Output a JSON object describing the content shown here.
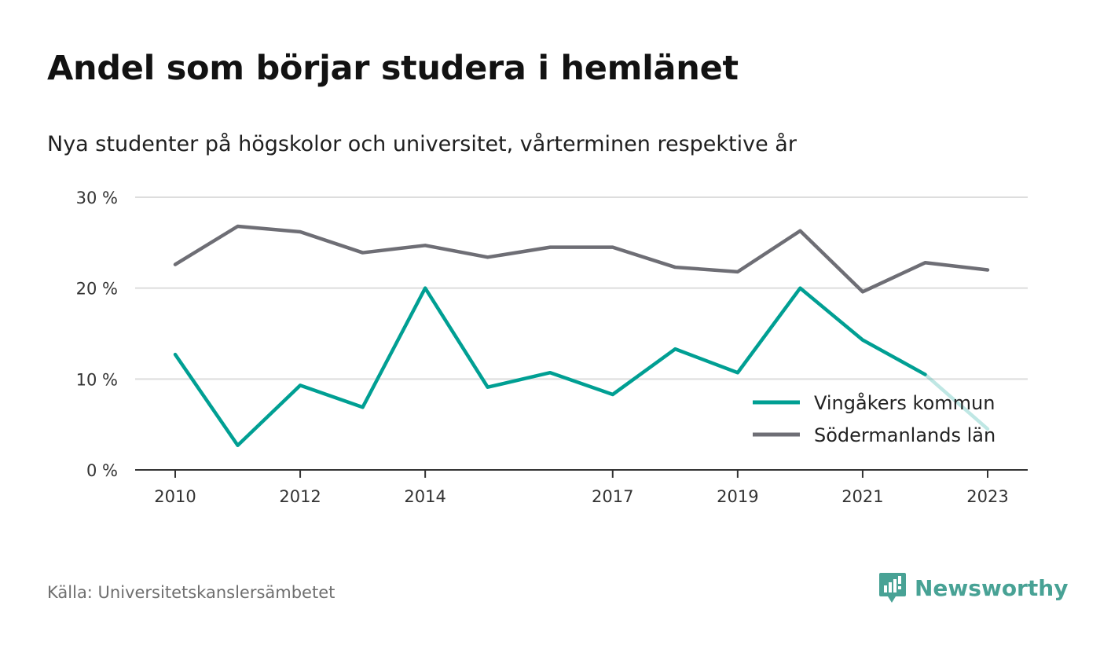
{
  "title": "Andel som börjar studera i hemlänet",
  "subtitle": "Nya studenter på högskolor och universitet, vårterminen respektive år",
  "source": "Källa: Universitetskanslersämbetet",
  "brand": {
    "name": "Newsworthy",
    "icon": "newsworthy-logo-icon",
    "color": "#48a295"
  },
  "colors": {
    "vingaker": "#009f93",
    "sodermanland": "#6e6e75",
    "grid": "#dddddd",
    "axis": "#333333"
  },
  "chart_data": {
    "type": "line",
    "x": [
      2010,
      2011,
      2012,
      2013,
      2014,
      2015,
      2016,
      2017,
      2018,
      2019,
      2020,
      2021,
      2022,
      2023
    ],
    "x_tick_labels": [
      "2010",
      "2012",
      "2014",
      "2017",
      "2019",
      "2021",
      "2023"
    ],
    "ylim": [
      0,
      30
    ],
    "y_ticks": [
      0,
      10,
      20,
      30
    ],
    "y_tick_labels": [
      "0 %",
      "10 %",
      "20 %",
      "30 %"
    ],
    "grid": true,
    "legend_position": "bottom-right",
    "series": [
      {
        "name": "Vingåkers kommun",
        "color": "#009f93",
        "values": [
          12.7,
          2.7,
          9.3,
          6.9,
          20.0,
          9.1,
          10.7,
          8.3,
          13.3,
          10.7,
          20.0,
          14.3,
          10.5,
          4.5
        ],
        "faded_last_segment": true
      },
      {
        "name": "Södermanlands län",
        "color": "#6e6e75",
        "values": [
          22.6,
          26.8,
          26.2,
          23.9,
          24.7,
          23.4,
          24.5,
          24.5,
          22.3,
          21.8,
          26.3,
          19.6,
          22.8,
          22.0
        ]
      }
    ]
  }
}
